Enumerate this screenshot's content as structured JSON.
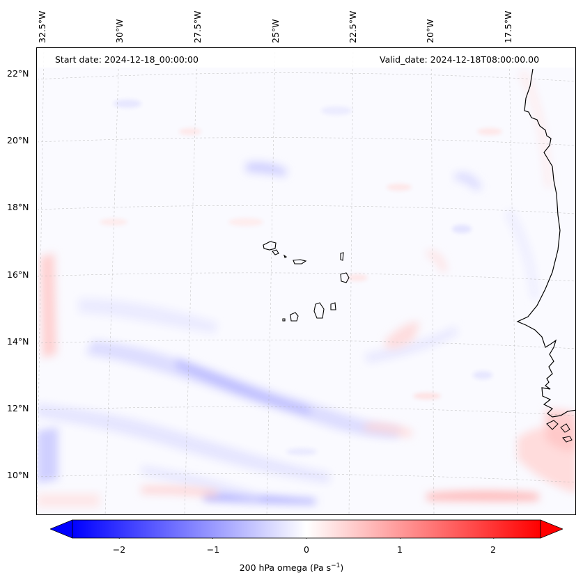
{
  "map": {
    "start_date_text": "Start date: 2024-12-18_00:00:00",
    "valid_date_text": "Valid_date: 2024-12-18T08:00:00.00",
    "longitude_labels": [
      "32.5°W",
      "30°W",
      "27.5°W",
      "25°W",
      "22.5°W",
      "20°W",
      "17.5°W"
    ],
    "latitude_labels": [
      "22°N",
      "20°N",
      "18°N",
      "16°N",
      "14°N",
      "12°N",
      "10°N"
    ],
    "field": "200 hPa omega",
    "colors": {
      "negative": "#0000ff",
      "positive": "#ff0000",
      "neutral": "#ffffff",
      "coast": "#000000"
    }
  },
  "colorbar": {
    "label_main": "200 hPa omega (Pa s",
    "label_exp": "−1",
    "label_close": ")",
    "ticks": [
      "−2",
      "−1",
      "0",
      "1",
      "2"
    ],
    "tick_values": [
      -2,
      -1,
      0,
      1,
      2
    ],
    "range": [
      -2.5,
      2.5
    ]
  }
}
